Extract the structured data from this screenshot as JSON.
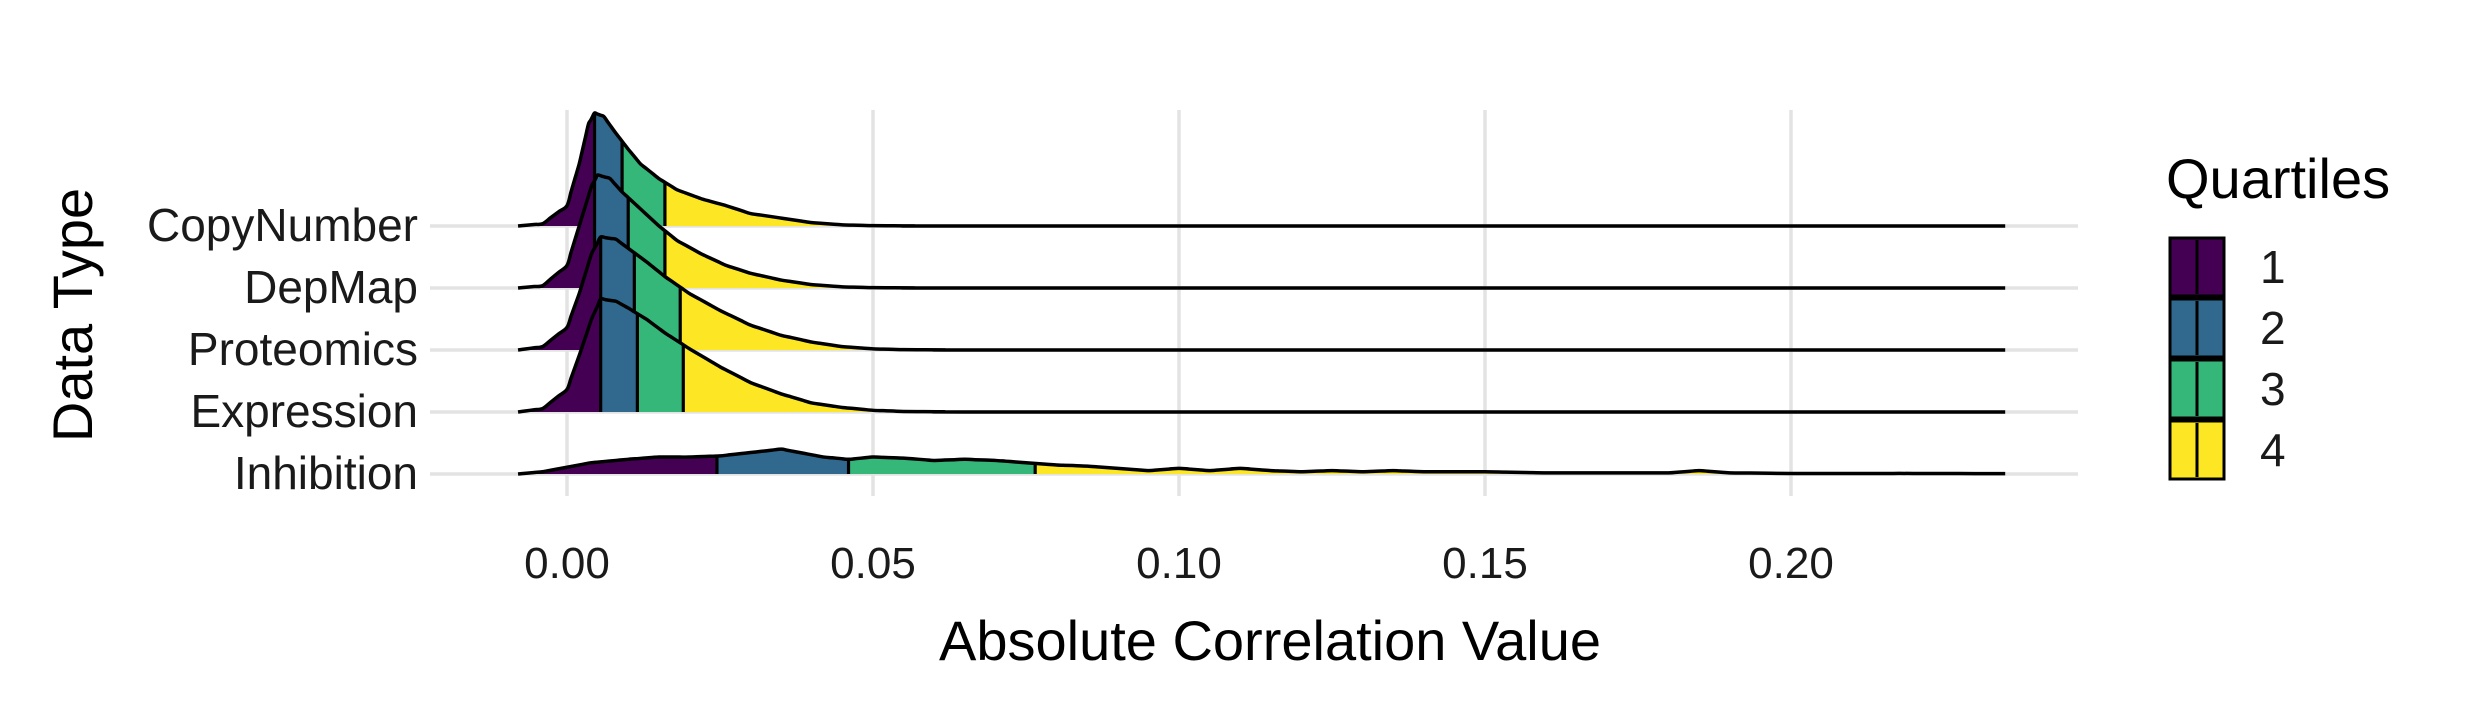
{
  "chart_data": {
    "type": "ridgeline",
    "xlabel": "Absolute Correlation Value",
    "ylabel": "Data Type",
    "xlim": [
      -0.008,
      0.235
    ],
    "x_ticks": [
      0.0,
      0.05,
      0.1,
      0.15,
      0.2
    ],
    "x_tick_labels": [
      "0.00",
      "0.05",
      "0.10",
      "0.15",
      "0.20"
    ],
    "grid": true,
    "legend": {
      "title": "Quartiles",
      "position": "right",
      "items": [
        {
          "label": "1",
          "color": "#440154"
        },
        {
          "label": "2",
          "color": "#31688e"
        },
        {
          "label": "3",
          "color": "#35b779"
        },
        {
          "label": "4",
          "color": "#fde725"
        }
      ]
    },
    "series": [
      {
        "name": "CopyNumber",
        "quartile_breaks": [
          0.0045,
          0.009,
          0.016
        ],
        "density": [
          [
            -0.008,
            0
          ],
          [
            -0.004,
            0.02
          ],
          [
            0.0,
            0.18
          ],
          [
            0.002,
            0.55
          ],
          [
            0.0035,
            0.9
          ],
          [
            0.0045,
            1.0
          ],
          [
            0.006,
            0.97
          ],
          [
            0.008,
            0.82
          ],
          [
            0.01,
            0.68
          ],
          [
            0.012,
            0.55
          ],
          [
            0.015,
            0.42
          ],
          [
            0.018,
            0.32
          ],
          [
            0.022,
            0.24
          ],
          [
            0.026,
            0.18
          ],
          [
            0.03,
            0.11
          ],
          [
            0.035,
            0.07
          ],
          [
            0.04,
            0.03
          ],
          [
            0.045,
            0.01
          ],
          [
            0.05,
            0.003
          ],
          [
            0.06,
            0
          ],
          [
            0.235,
            0
          ]
        ]
      },
      {
        "name": "DepMap",
        "quartile_breaks": [
          0.0045,
          0.01,
          0.016
        ],
        "density": [
          [
            -0.008,
            0
          ],
          [
            -0.004,
            0.02
          ],
          [
            0.0,
            0.2
          ],
          [
            0.002,
            0.55
          ],
          [
            0.004,
            0.9
          ],
          [
            0.005,
            1.0
          ],
          [
            0.007,
            0.97
          ],
          [
            0.009,
            0.85
          ],
          [
            0.012,
            0.7
          ],
          [
            0.015,
            0.55
          ],
          [
            0.018,
            0.42
          ],
          [
            0.022,
            0.3
          ],
          [
            0.026,
            0.2
          ],
          [
            0.03,
            0.13
          ],
          [
            0.035,
            0.07
          ],
          [
            0.04,
            0.03
          ],
          [
            0.045,
            0.01
          ],
          [
            0.05,
            0.003
          ],
          [
            0.06,
            0
          ],
          [
            0.235,
            0
          ]
        ]
      },
      {
        "name": "Proteomics",
        "quartile_breaks": [
          0.0055,
          0.011,
          0.0185
        ],
        "density": [
          [
            -0.008,
            0
          ],
          [
            -0.004,
            0.03
          ],
          [
            0.0,
            0.2
          ],
          [
            0.002,
            0.5
          ],
          [
            0.004,
            0.85
          ],
          [
            0.0055,
            1.0
          ],
          [
            0.008,
            0.98
          ],
          [
            0.01,
            0.9
          ],
          [
            0.013,
            0.78
          ],
          [
            0.016,
            0.65
          ],
          [
            0.02,
            0.5
          ],
          [
            0.025,
            0.35
          ],
          [
            0.03,
            0.22
          ],
          [
            0.035,
            0.13
          ],
          [
            0.04,
            0.07
          ],
          [
            0.045,
            0.03
          ],
          [
            0.05,
            0.01
          ],
          [
            0.055,
            0.003
          ],
          [
            0.065,
            0
          ],
          [
            0.235,
            0
          ]
        ]
      },
      {
        "name": "Expression",
        "quartile_breaks": [
          0.0055,
          0.0115,
          0.019
        ],
        "density": [
          [
            -0.008,
            0
          ],
          [
            -0.004,
            0.03
          ],
          [
            0.0,
            0.2
          ],
          [
            0.002,
            0.5
          ],
          [
            0.004,
            0.82
          ],
          [
            0.0055,
            1.0
          ],
          [
            0.008,
            0.98
          ],
          [
            0.01,
            0.92
          ],
          [
            0.013,
            0.82
          ],
          [
            0.016,
            0.7
          ],
          [
            0.02,
            0.56
          ],
          [
            0.025,
            0.4
          ],
          [
            0.03,
            0.26
          ],
          [
            0.035,
            0.16
          ],
          [
            0.04,
            0.08
          ],
          [
            0.045,
            0.04
          ],
          [
            0.05,
            0.015
          ],
          [
            0.055,
            0.005
          ],
          [
            0.065,
            0
          ],
          [
            0.235,
            0
          ]
        ]
      },
      {
        "name": "Inhibition",
        "quartile_breaks": [
          0.0245,
          0.046,
          0.0765
        ],
        "density": [
          [
            -0.008,
            0
          ],
          [
            -0.004,
            0.02
          ],
          [
            0.0,
            0.06
          ],
          [
            0.004,
            0.1
          ],
          [
            0.01,
            0.13
          ],
          [
            0.015,
            0.15
          ],
          [
            0.02,
            0.15
          ],
          [
            0.025,
            0.16
          ],
          [
            0.03,
            0.19
          ],
          [
            0.035,
            0.22
          ],
          [
            0.038,
            0.19
          ],
          [
            0.042,
            0.15
          ],
          [
            0.046,
            0.13
          ],
          [
            0.05,
            0.15
          ],
          [
            0.055,
            0.14
          ],
          [
            0.06,
            0.12
          ],
          [
            0.065,
            0.13
          ],
          [
            0.07,
            0.12
          ],
          [
            0.075,
            0.1
          ],
          [
            0.08,
            0.08
          ],
          [
            0.085,
            0.07
          ],
          [
            0.09,
            0.05
          ],
          [
            0.095,
            0.03
          ],
          [
            0.1,
            0.05
          ],
          [
            0.105,
            0.03
          ],
          [
            0.11,
            0.05
          ],
          [
            0.115,
            0.03
          ],
          [
            0.12,
            0.02
          ],
          [
            0.125,
            0.03
          ],
          [
            0.13,
            0.02
          ],
          [
            0.135,
            0.03
          ],
          [
            0.14,
            0.02
          ],
          [
            0.15,
            0.02
          ],
          [
            0.16,
            0.01
          ],
          [
            0.17,
            0.01
          ],
          [
            0.18,
            0.01
          ],
          [
            0.185,
            0.03
          ],
          [
            0.19,
            0.01
          ],
          [
            0.2,
            0.005
          ],
          [
            0.21,
            0.005
          ],
          [
            0.22,
            0.005
          ],
          [
            0.235,
            0.003
          ]
        ]
      }
    ]
  }
}
